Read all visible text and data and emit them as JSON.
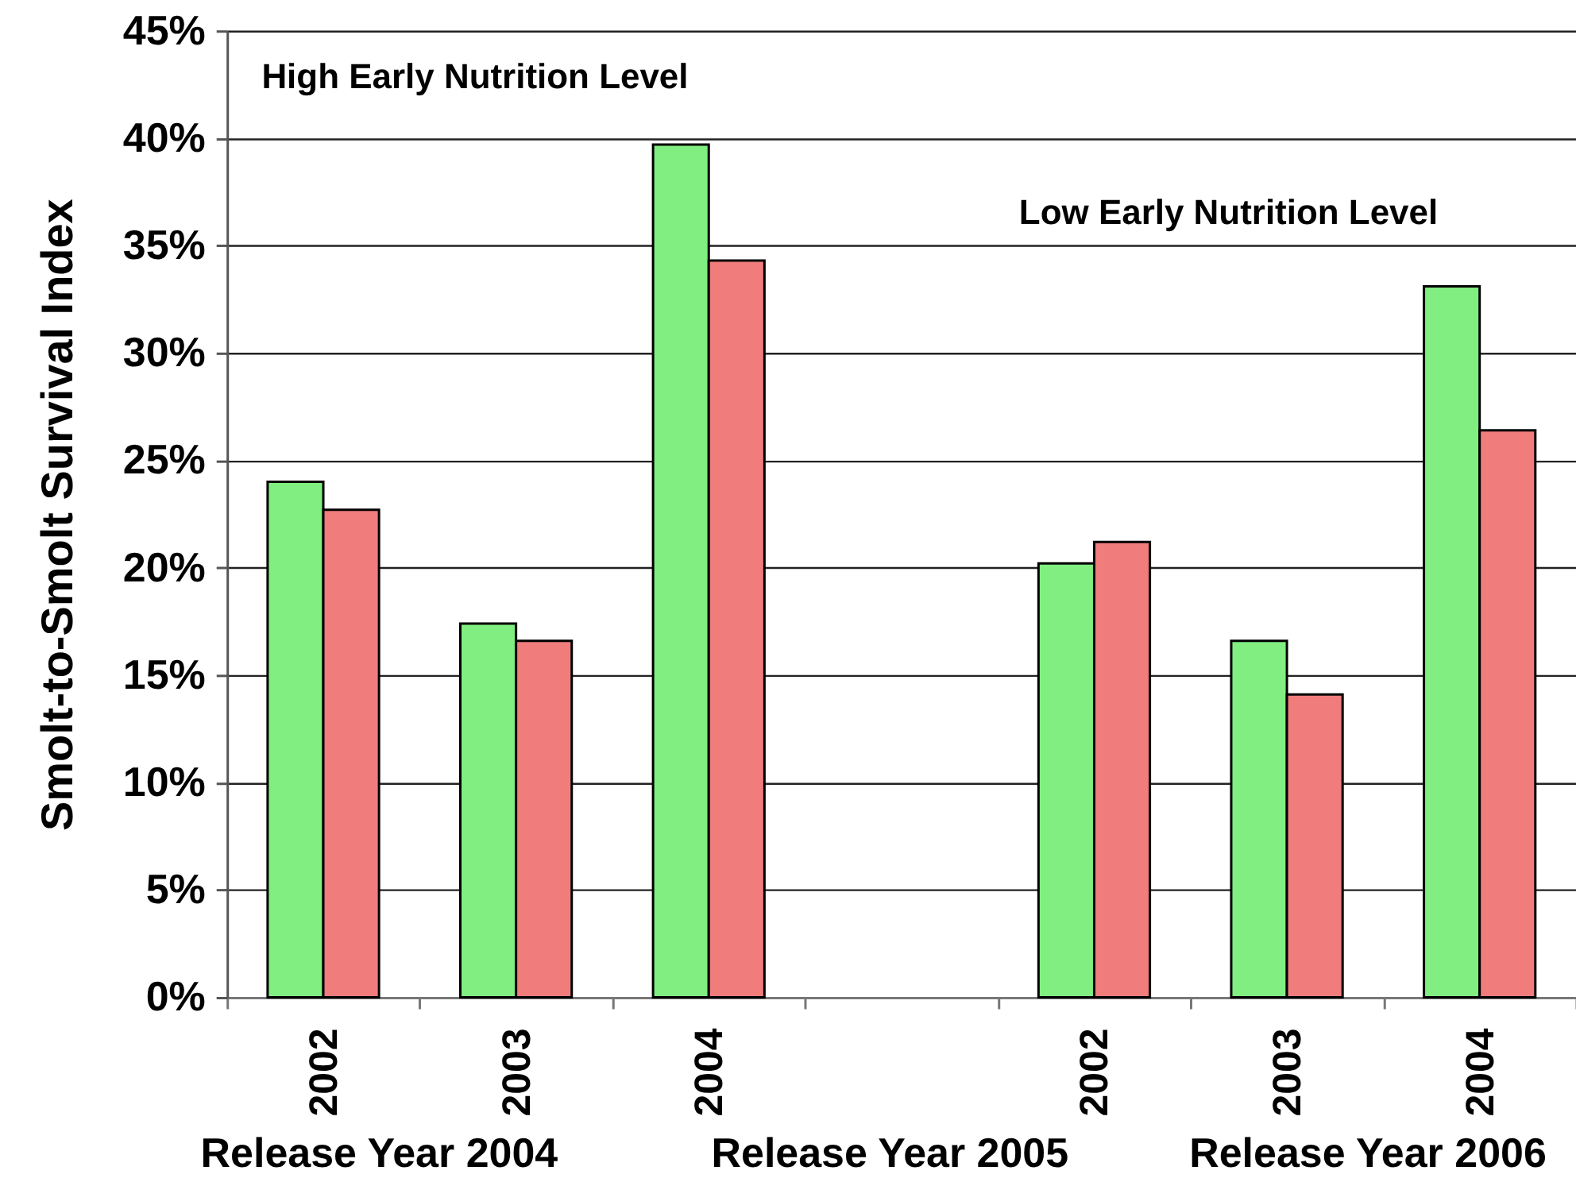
{
  "chart_data": {
    "type": "bar",
    "ylabel": "Smolt-to-Smolt Survival Index",
    "categories": [
      "2002",
      "2003",
      "2004",
      null,
      "2002",
      "2003",
      "2004"
    ],
    "series": [
      {
        "color": "#80ee80",
        "values": [
          24.0,
          17.4,
          39.7,
          null,
          20.2,
          16.6,
          33.1
        ]
      },
      {
        "color": "#f07c7c",
        "values": [
          22.7,
          16.6,
          34.3,
          null,
          21.2,
          14.1,
          26.4
        ]
      }
    ],
    "ylim": [
      0,
      45
    ],
    "yticks": [
      {
        "value": 0,
        "label": "0%"
      },
      {
        "value": 5,
        "label": "5%"
      },
      {
        "value": 10,
        "label": "10%"
      },
      {
        "value": 15,
        "label": "15%"
      },
      {
        "value": 20,
        "label": "20%"
      },
      {
        "value": 25,
        "label": "25%"
      },
      {
        "value": 30,
        "label": "30%"
      },
      {
        "value": 35,
        "label": "35%"
      },
      {
        "value": 40,
        "label": "40%"
      },
      {
        "value": 45,
        "label": "45%"
      }
    ],
    "grid": "y",
    "annotations": [
      "High Early Nutrition Level",
      "Low Early Nutrition Level",
      "Release Year 2004",
      "Release Year 2005",
      "Release Year 2006"
    ]
  }
}
